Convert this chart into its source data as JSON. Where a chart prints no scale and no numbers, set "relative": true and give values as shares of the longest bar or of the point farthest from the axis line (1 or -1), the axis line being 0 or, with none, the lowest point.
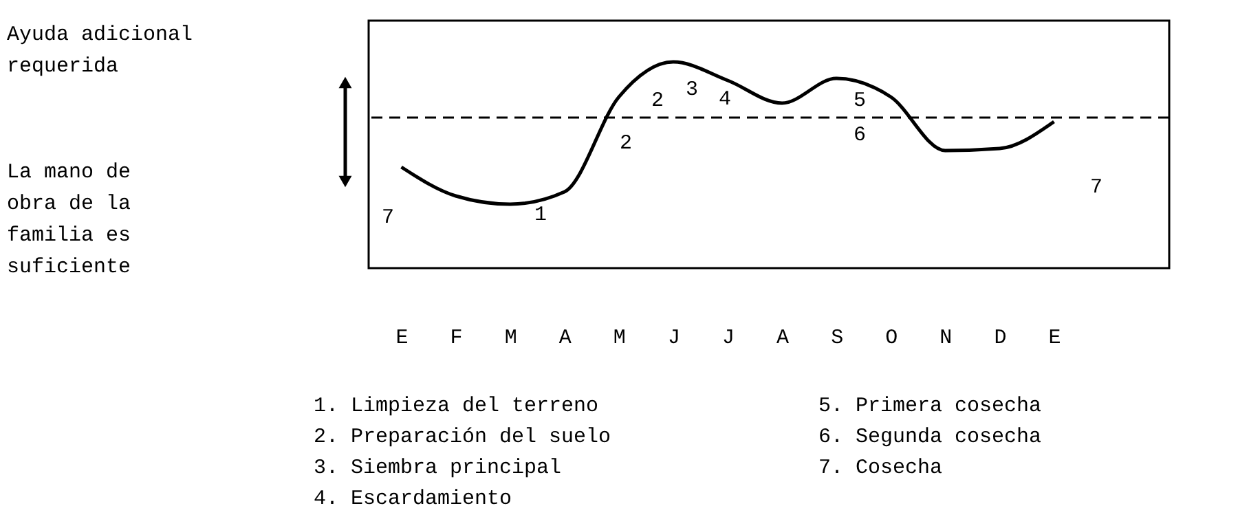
{
  "chart_data": {
    "type": "line",
    "relative": true,
    "color": "#000000",
    "categories": [
      "E",
      "F",
      "M",
      "A",
      "M",
      "J",
      "J",
      "A",
      "S",
      "O",
      "N",
      "D",
      "E"
    ],
    "values": [
      0.49,
      0.35,
      0.31,
      0.37,
      0.83,
      1,
      0.91,
      0.8,
      0.92,
      0.83,
      0.57,
      0.58,
      0.71
    ],
    "grid": false,
    "marker": "none",
    "line_style": "solid",
    "ref_lines": [
      {
        "axis": "y",
        "value": 0.73,
        "line_style": "dashed",
        "color": "#000000"
      }
    ],
    "annotations": [
      "Ayuda adicional\nrequerida",
      "La mano de\nobra de la\nfamilia es\nsuficiente",
      "7",
      "1",
      "2",
      "2",
      "3",
      "4",
      "5",
      "6",
      "7",
      "1. Limpieza  del terreno",
      "2. Preparación del suelo",
      "3. Siembra principal",
      "4. Escardamiento",
      "5.  Primera cosecha",
      "6.  Segunda cosecha",
      "7.  Cosecha"
    ]
  }
}
